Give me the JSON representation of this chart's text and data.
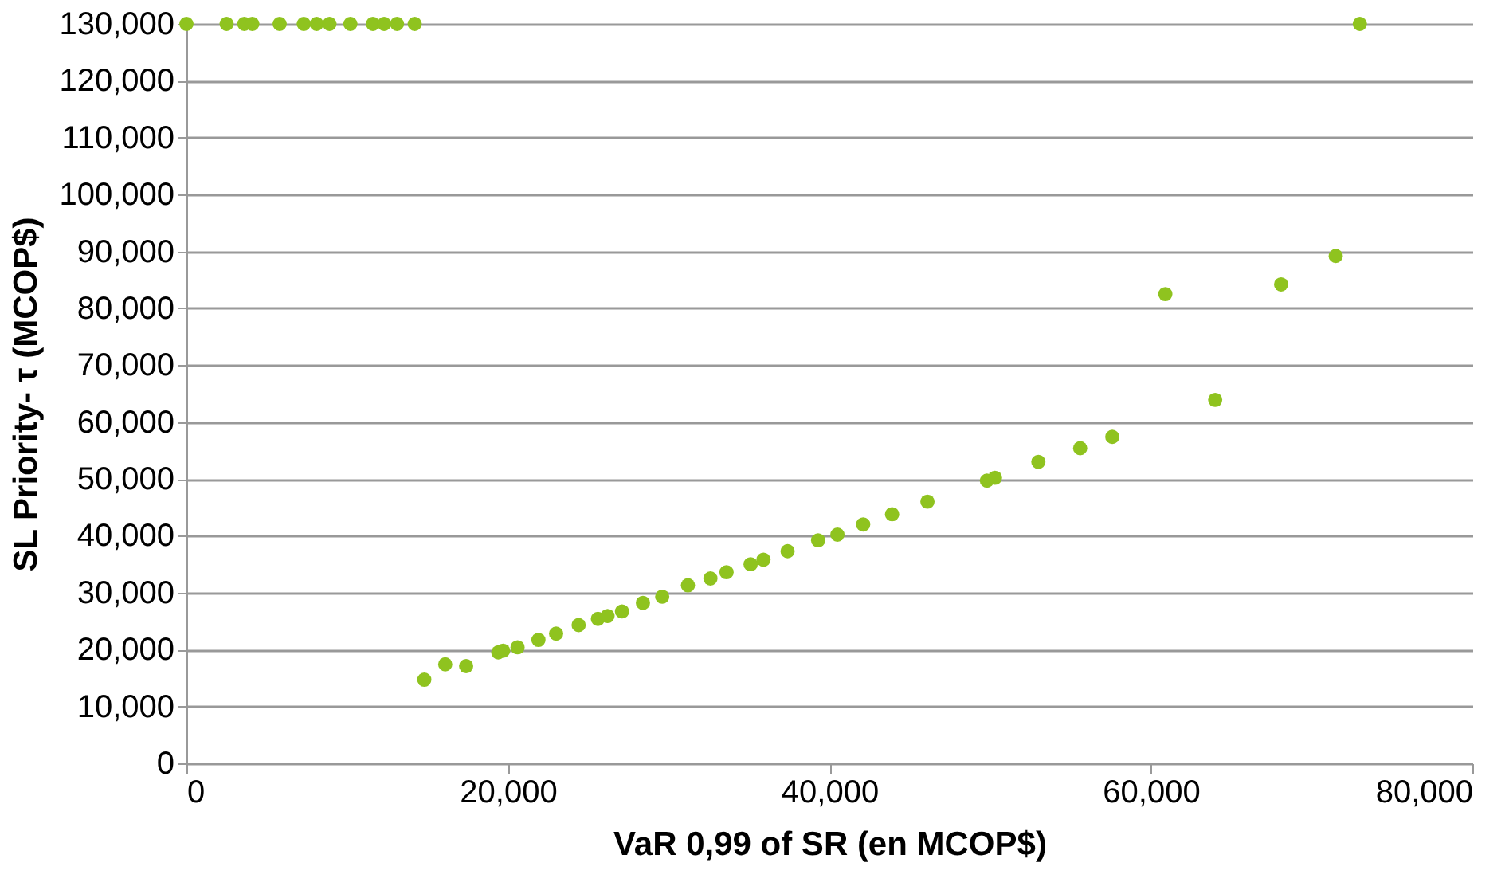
{
  "chart_data": {
    "type": "scatter",
    "xlabel": "VaR 0,99 of SR (en MCOP$)",
    "ylabel": "SL Priority- τ (MCOP$)",
    "x": [
      0,
      2500,
      3600,
      4100,
      5800,
      7300,
      8100,
      8900,
      10200,
      11600,
      12300,
      13100,
      14200,
      73000,
      14800,
      16100,
      17400,
      19400,
      19700,
      20600,
      21900,
      23000,
      24400,
      25600,
      26200,
      27100,
      28400,
      29600,
      31200,
      32600,
      33600,
      35100,
      35900,
      37400,
      39300,
      40500,
      42100,
      43900,
      46100,
      49800,
      50300,
      53000,
      55600,
      57600,
      60900,
      64000,
      68100,
      71500
    ],
    "series": [
      {
        "color": "#8fc31f",
        "values": [
          130000,
          130000,
          130000,
          130000,
          130000,
          130000,
          130000,
          130000,
          130000,
          130000,
          130000,
          130000,
          130000,
          130000,
          14700,
          17400,
          17100,
          19500,
          19800,
          20400,
          21700,
          22800,
          24300,
          25400,
          25900,
          26700,
          28200,
          29300,
          31300,
          32500,
          33600,
          35000,
          35800,
          37300,
          39200,
          40200,
          42000,
          43800,
          46000,
          49700,
          50200,
          53000,
          55400,
          57400,
          82500,
          63900,
          84200,
          89200
        ]
      }
    ],
    "xlim": [
      0,
      80000
    ],
    "xticks": [
      0,
      {
        "value": 20000,
        "label": "20,000"
      },
      {
        "value": 40000,
        "label": "40,000"
      },
      {
        "value": 60000,
        "label": "60,000"
      },
      {
        "value": 80000,
        "label": "80,000"
      }
    ],
    "ylim": [
      0,
      130000
    ],
    "yticks": [
      0,
      {
        "value": 10000,
        "label": "10,000"
      },
      {
        "value": 20000,
        "label": "20,000"
      },
      {
        "value": 30000,
        "label": "30,000"
      },
      {
        "value": 40000,
        "label": "40,000"
      },
      {
        "value": 50000,
        "label": "50,000"
      },
      {
        "value": 60000,
        "label": "60,000"
      },
      {
        "value": 70000,
        "label": "70,000"
      },
      {
        "value": 80000,
        "label": "80,000"
      },
      {
        "value": 90000,
        "label": "90,000"
      },
      {
        "value": 100000,
        "label": "100,000"
      },
      {
        "value": 110000,
        "label": "110,000"
      },
      {
        "value": 120000,
        "label": "120,000"
      },
      {
        "value": 130000,
        "label": "130,000"
      }
    ],
    "grid": "y",
    "marker": "circle"
  }
}
